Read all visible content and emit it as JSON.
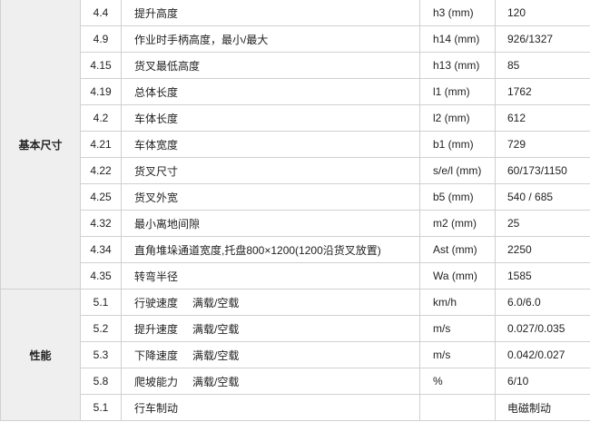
{
  "groups": [
    {
      "label": "基本尺寸",
      "rows": [
        {
          "no": "4.4",
          "name": "提升高度",
          "unit": "h3 (mm)",
          "value": "120"
        },
        {
          "no": "4.9",
          "name": "作业时手柄高度，最小/最大",
          "unit": "h14 (mm)",
          "value": "926/1327"
        },
        {
          "no": "4.15",
          "name": "货叉最低高度",
          "unit": "h13 (mm)",
          "value": "85"
        },
        {
          "no": "4.19",
          "name": "总体长度",
          "unit": "l1 (mm)",
          "value": "1762"
        },
        {
          "no": "4.2",
          "name": "车体长度",
          "unit": "l2 (mm)",
          "value": "612"
        },
        {
          "no": "4.21",
          "name": "车体宽度",
          "unit": "b1 (mm)",
          "value": "729"
        },
        {
          "no": "4.22",
          "name": "货叉尺寸",
          "unit": "s/e/l (mm)",
          "value": "60/173/1150"
        },
        {
          "no": "4.25",
          "name": "货叉外宽",
          "unit": "b5 (mm)",
          "value": "540 / 685"
        },
        {
          "no": "4.32",
          "name": "最小离地间隙",
          "unit": "m2 (mm)",
          "value": "25"
        },
        {
          "no": "4.34",
          "name": "直角堆垛通道宽度,托盘800×1200(1200沿货叉放置)",
          "unit": "Ast (mm)",
          "value": "2250"
        },
        {
          "no": "4.35",
          "name": "转弯半径",
          "unit": "Wa (mm)",
          "value": "1585"
        }
      ]
    },
    {
      "label": "性能",
      "rows": [
        {
          "no": "5.1",
          "name": "行驶速度",
          "cond": "满载/空载",
          "unit": "km/h",
          "value": "6.0/6.0"
        },
        {
          "no": "5.2",
          "name": "提升速度",
          "cond": "满载/空载",
          "unit": "m/s",
          "value": "0.027/0.035"
        },
        {
          "no": "5.3",
          "name": "下降速度",
          "cond": "满载/空载",
          "unit": "m/s",
          "value": "0.042/0.027"
        },
        {
          "no": "5.8",
          "name": "爬坡能力",
          "cond": "满载/空载",
          "unit": "%",
          "value": "6/10"
        },
        {
          "no": "5.1",
          "name": "行车制动",
          "unit": "",
          "value": "电磁制动"
        }
      ]
    }
  ]
}
